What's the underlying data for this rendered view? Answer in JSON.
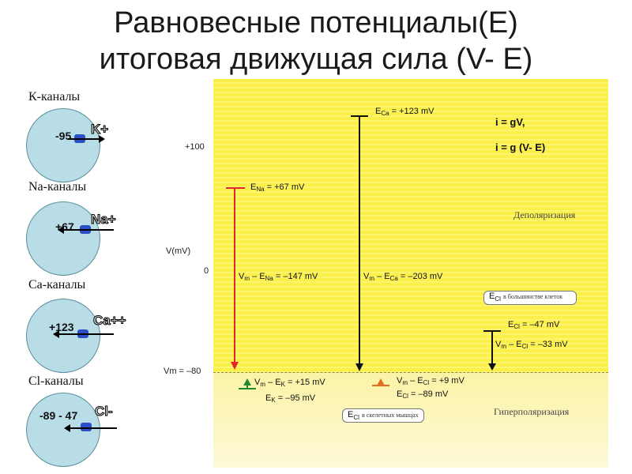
{
  "title": {
    "line1": "Равновесные потенциалы(Е)",
    "line2": "итоговая движущая сила (V- E)"
  },
  "channels": [
    {
      "label": "К-каналы",
      "potential": "-95",
      "ion": "K+"
    },
    {
      "label": "Na-каналы",
      "potential": "+67",
      "ion": "Na+"
    },
    {
      "label": "Са-каналы",
      "potential": "+123",
      "ion": "Ca++"
    },
    {
      "label": "Cl-каналы",
      "potential": "-89 - 47",
      "ion": "Cl-"
    }
  ],
  "axis": {
    "plus100": "+100",
    "vm_label": "V(mV)",
    "zero": "0",
    "rest": "Vm = –80"
  },
  "equations": {
    "eq1": "i = gV,",
    "eq2": "i = g (V- E)"
  },
  "zones": {
    "depol": "Деполяризация",
    "hyperpol": "Гиперполяризация"
  },
  "annotations": {
    "eca_name": "E",
    "eca_sub": "Ca",
    "eca_val": " = +123 mV",
    "ena_name": "E",
    "ena_sub": "Na",
    "ena_val": " = +67 mV",
    "vm_ena_a": "V",
    "vm_ena_b": "m",
    "vm_ena_c": " – E",
    "vm_ena_d": "Na",
    "vm_ena_e": " =  –147 mV",
    "vm_eca_a": "V",
    "vm_eca_b": "m",
    "vm_eca_c": " – E",
    "vm_eca_d": "Ca",
    "vm_eca_e": " =  –203 mV",
    "ecl_name": "E",
    "ecl_sub": "Cl",
    "ecl_val": " = –47 mV",
    "vm_ecl_a": "V",
    "vm_ecl_b": "m",
    "vm_ecl_c": " – E",
    "vm_ecl_d": "Cl",
    "vm_ecl_e": " =  –33 mV",
    "vm_ek_a": "V",
    "vm_ek_b": "m",
    "vm_ek_c": " – E",
    "vm_ek_d": "K",
    "vm_ek_e": " =  +15 mV",
    "ek_name": "E",
    "ek_sub": "K",
    "ek_val": " = –95 mV",
    "vm_ecl2_a": "V",
    "vm_ecl2_b": "m",
    "vm_ecl2_c": " – E",
    "vm_ecl2_d": "Cl",
    "vm_ecl2_e": "  =  +9 mV",
    "ecl2_name": "E",
    "ecl2_sub": "Cl",
    "ecl2_val": " = –89 mV",
    "note1_name": "E",
    "note1_sub": "Cl",
    "note1_text": "в большинстве клеток",
    "note2_name": "E",
    "note2_sub": "Cl",
    "note2_text": "в скелетных мышцах"
  },
  "colors": {
    "na_line": "#e3242b",
    "ca_line": "#111111",
    "k_marker": "#1f8a2e",
    "cl_marker": "#e07020",
    "panel": "#fbf04a"
  }
}
